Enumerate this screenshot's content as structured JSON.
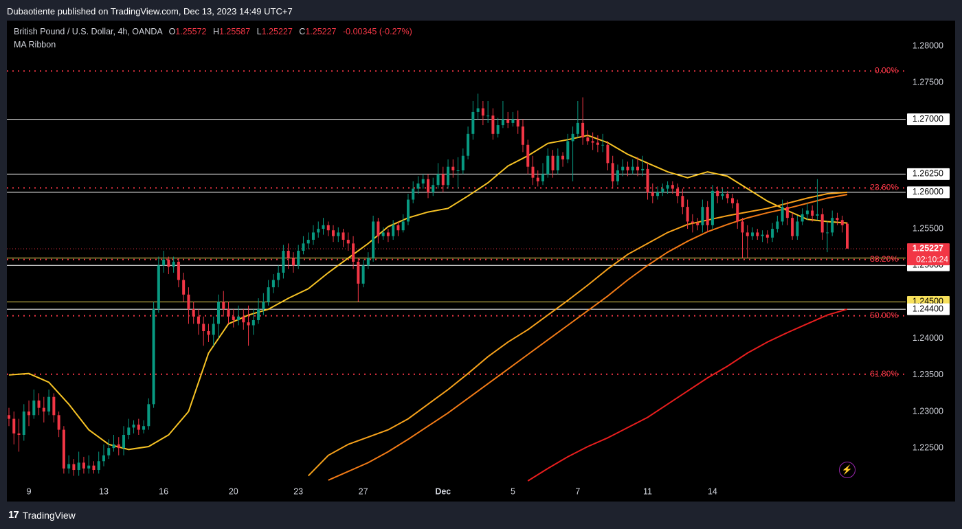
{
  "published": "Dubaotiente published on TradingView.com, Dec 13, 2023 14:49 UTC+7",
  "header": {
    "symbol": "British Pound / U.S. Dollar, 4h, OANDA",
    "o_label": "O",
    "o_value": "1.25572",
    "h_label": "H",
    "h_value": "1.25587",
    "l_label": "L",
    "l_value": "1.25227",
    "c_label": "C",
    "c_value": "1.25227",
    "change": "-0.00345 (-0.27%)"
  },
  "indicator": "MA Ribbon",
  "footer": {
    "brand": "TradingView"
  },
  "colors": {
    "up": "#089981",
    "down": "#f23645",
    "fib": "#f23645",
    "ma1": "#f7c325",
    "ma2": "#f7a21b",
    "ma3": "#f37b16",
    "ma4": "#e91e1e"
  },
  "chart_data": {
    "type": "candlestick",
    "ylim": [
      1.2205,
      1.2835
    ],
    "y_ticks": [
      "1.28000",
      "1.27500",
      "1.25500",
      "1.24000",
      "1.23500",
      "1.23000",
      "1.22500"
    ],
    "x_ticks": [
      "9",
      "13",
      "16",
      "20",
      "23",
      "27",
      "Dec",
      "5",
      "7",
      "11",
      "14"
    ],
    "x_tick_index": [
      4,
      19,
      31,
      45,
      58,
      71,
      87,
      101,
      114,
      128,
      141
    ],
    "fib_levels": [
      {
        "label": "0.00%",
        "price": 1.2766
      },
      {
        "label": "23.60%",
        "price": 1.2606
      },
      {
        "label": "38.20%",
        "price": 1.2508
      },
      {
        "label": "50.00%",
        "price": 1.2431
      },
      {
        "label": "61.80%",
        "price": 1.2351
      }
    ],
    "h_lines": [
      {
        "label": "1.27000",
        "price": 1.27,
        "color": "#ffffff"
      },
      {
        "label": "1.26250",
        "price": 1.2625,
        "color": "#ffffff"
      },
      {
        "label": "1.26000",
        "price": 1.26,
        "color": "#ffffff"
      },
      {
        "label": "1.25100",
        "price": 1.251,
        "color": "#f7e05b"
      },
      {
        "label": "1.25000",
        "price": 1.25,
        "color": "#ffffff"
      },
      {
        "label": "1.24500",
        "price": 1.245,
        "color": "#f7e05b"
      },
      {
        "label": "1.24400",
        "price": 1.244,
        "color": "#ffffff"
      }
    ],
    "last_price": {
      "label": "1.25227",
      "countdown": "02:10:24",
      "price": 1.25227
    },
    "candles": [
      [
        1.2295,
        1.229,
        1.2305,
        1.228
      ],
      [
        1.229,
        1.227,
        1.23,
        1.2255
      ],
      [
        1.227,
        1.2268,
        1.229,
        1.2245
      ],
      [
        1.2268,
        1.23,
        1.231,
        1.226
      ],
      [
        1.23,
        1.2295,
        1.2315,
        1.228
      ],
      [
        1.2295,
        1.2315,
        1.233,
        1.229
      ],
      [
        1.2315,
        1.2305,
        1.2325,
        1.2295
      ],
      [
        1.2305,
        1.23,
        1.232,
        1.2285
      ],
      [
        1.23,
        1.232,
        1.233,
        1.2295
      ],
      [
        1.232,
        1.2295,
        1.2325,
        1.2285
      ],
      [
        1.2295,
        1.2275,
        1.23,
        1.2265
      ],
      [
        1.2275,
        1.2222,
        1.228,
        1.2215
      ],
      [
        1.2222,
        1.2228,
        1.224,
        1.2215
      ],
      [
        1.2228,
        1.222,
        1.2235,
        1.2212
      ],
      [
        1.222,
        1.223,
        1.2245,
        1.2212
      ],
      [
        1.223,
        1.2222,
        1.2238,
        1.2215
      ],
      [
        1.2222,
        1.2226,
        1.224,
        1.2215
      ],
      [
        1.2226,
        1.222,
        1.2232,
        1.2215
      ],
      [
        1.222,
        1.2232,
        1.2245,
        1.2215
      ],
      [
        1.2232,
        1.224,
        1.2255,
        1.2225
      ],
      [
        1.224,
        1.225,
        1.2262,
        1.2235
      ],
      [
        1.225,
        1.2255,
        1.2268,
        1.2245
      ],
      [
        1.2255,
        1.225,
        1.2265,
        1.224
      ],
      [
        1.225,
        1.2268,
        1.228,
        1.224
      ],
      [
        1.2268,
        1.2278,
        1.229,
        1.2262
      ],
      [
        1.2278,
        1.2282,
        1.2288,
        1.227
      ],
      [
        1.2282,
        1.2275,
        1.229,
        1.2268
      ],
      [
        1.2275,
        1.228,
        1.2288,
        1.227
      ],
      [
        1.228,
        1.231,
        1.2318,
        1.2275
      ],
      [
        1.231,
        1.244,
        1.245,
        1.2305
      ],
      [
        1.244,
        1.25,
        1.2512,
        1.2435
      ],
      [
        1.25,
        1.2508,
        1.252,
        1.249
      ],
      [
        1.2508,
        1.2498,
        1.2512,
        1.2488
      ],
      [
        1.2498,
        1.2505,
        1.2512,
        1.249
      ],
      [
        1.2505,
        1.248,
        1.251,
        1.247
      ],
      [
        1.248,
        1.246,
        1.249,
        1.245
      ],
      [
        1.246,
        1.244,
        1.247,
        1.242
      ],
      [
        1.244,
        1.243,
        1.245,
        1.242
      ],
      [
        1.243,
        1.242,
        1.244,
        1.2405
      ],
      [
        1.242,
        1.241,
        1.243,
        1.239
      ],
      [
        1.241,
        1.2405,
        1.242,
        1.2395
      ],
      [
        1.2405,
        1.242,
        1.243,
        1.239
      ],
      [
        1.242,
        1.245,
        1.246,
        1.24
      ],
      [
        1.245,
        1.244,
        1.2465,
        1.243
      ],
      [
        1.244,
        1.243,
        1.245,
        1.242
      ],
      [
        1.243,
        1.2425,
        1.244,
        1.2415
      ],
      [
        1.2425,
        1.243,
        1.2445,
        1.2418
      ],
      [
        1.243,
        1.2422,
        1.244,
        1.2412
      ],
      [
        1.2422,
        1.2418,
        1.2445,
        1.239
      ],
      [
        1.2418,
        1.2425,
        1.244,
        1.2405
      ],
      [
        1.2425,
        1.244,
        1.2455,
        1.242
      ],
      [
        1.244,
        1.245,
        1.2462,
        1.2432
      ],
      [
        1.245,
        1.247,
        1.248,
        1.2445
      ],
      [
        1.247,
        1.248,
        1.2488,
        1.2462
      ],
      [
        1.248,
        1.249,
        1.25,
        1.247
      ],
      [
        1.249,
        1.252,
        1.2528,
        1.2482
      ],
      [
        1.252,
        1.251,
        1.253,
        1.2495
      ],
      [
        1.251,
        1.25,
        1.2518,
        1.249
      ],
      [
        1.25,
        1.252,
        1.2528,
        1.2495
      ],
      [
        1.252,
        1.253,
        1.254,
        1.2515
      ],
      [
        1.253,
        1.2535,
        1.2545,
        1.2522
      ],
      [
        1.2535,
        1.2545,
        1.2555,
        1.2528
      ],
      [
        1.2545,
        1.255,
        1.256,
        1.2538
      ],
      [
        1.255,
        1.2555,
        1.2565,
        1.2542
      ],
      [
        1.2555,
        1.2548,
        1.256,
        1.254
      ],
      [
        1.2548,
        1.254,
        1.2555,
        1.2532
      ],
      [
        1.254,
        1.2545,
        1.2552,
        1.2532
      ],
      [
        1.2545,
        1.2535,
        1.255,
        1.2525
      ],
      [
        1.2535,
        1.253,
        1.2545,
        1.252
      ],
      [
        1.253,
        1.2505,
        1.254,
        1.2495
      ],
      [
        1.2505,
        1.2475,
        1.251,
        1.245
      ],
      [
        1.2475,
        1.25,
        1.2508,
        1.247
      ],
      [
        1.25,
        1.251,
        1.2518,
        1.2495
      ],
      [
        1.251,
        1.256,
        1.2568,
        1.2505
      ],
      [
        1.256,
        1.254,
        1.2565,
        1.253
      ],
      [
        1.254,
        1.2545,
        1.2552,
        1.2535
      ],
      [
        1.2545,
        1.254,
        1.255,
        1.2532
      ],
      [
        1.254,
        1.2555,
        1.2562,
        1.2535
      ],
      [
        1.2555,
        1.2548,
        1.256,
        1.254
      ],
      [
        1.2548,
        1.256,
        1.257,
        1.2545
      ],
      [
        1.256,
        1.259,
        1.2598,
        1.2555
      ],
      [
        1.259,
        1.2605,
        1.2615,
        1.2585
      ],
      [
        1.2605,
        1.2612,
        1.2622,
        1.2598
      ],
      [
        1.2612,
        1.2618,
        1.2625,
        1.2605
      ],
      [
        1.2618,
        1.26,
        1.2625,
        1.2592
      ],
      [
        1.26,
        1.261,
        1.262,
        1.2595
      ],
      [
        1.261,
        1.2625,
        1.264,
        1.2605
      ],
      [
        1.2625,
        1.261,
        1.2635,
        1.26
      ],
      [
        1.261,
        1.2635,
        1.2645,
        1.2605
      ],
      [
        1.2635,
        1.263,
        1.2645,
        1.262
      ],
      [
        1.263,
        1.263,
        1.2648,
        1.2605
      ],
      [
        1.263,
        1.265,
        1.266,
        1.2625
      ],
      [
        1.265,
        1.268,
        1.269,
        1.2645
      ],
      [
        1.268,
        1.271,
        1.2725,
        1.2672
      ],
      [
        1.271,
        1.2715,
        1.2735,
        1.27
      ],
      [
        1.2715,
        1.2705,
        1.2725,
        1.2692
      ],
      [
        1.2705,
        1.2705,
        1.2725,
        1.2695
      ],
      [
        1.2705,
        1.268,
        1.2715,
        1.2672
      ],
      [
        1.268,
        1.2692,
        1.2702,
        1.2675
      ],
      [
        1.2692,
        1.27,
        1.2725,
        1.2688
      ],
      [
        1.27,
        1.2695,
        1.271,
        1.2688
      ],
      [
        1.2695,
        1.27,
        1.271,
        1.269
      ],
      [
        1.27,
        1.269,
        1.2712,
        1.268
      ],
      [
        1.269,
        1.2665,
        1.27,
        1.2655
      ],
      [
        1.2665,
        1.2635,
        1.2672,
        1.2625
      ],
      [
        1.2635,
        1.262,
        1.265,
        1.261
      ],
      [
        1.262,
        1.2615,
        1.263,
        1.2608
      ],
      [
        1.2615,
        1.2625,
        1.264,
        1.261
      ],
      [
        1.2625,
        1.265,
        1.266,
        1.262
      ],
      [
        1.265,
        1.263,
        1.2658,
        1.262
      ],
      [
        1.263,
        1.265,
        1.266,
        1.2625
      ],
      [
        1.265,
        1.2645,
        1.2655,
        1.2635
      ],
      [
        1.2645,
        1.267,
        1.268,
        1.264
      ],
      [
        1.267,
        1.268,
        1.269,
        1.2615
      ],
      [
        1.268,
        1.2695,
        1.2725,
        1.2675
      ],
      [
        1.2695,
        1.2675,
        1.273,
        1.2665
      ],
      [
        1.2675,
        1.267,
        1.2685,
        1.2665
      ],
      [
        1.267,
        1.2668,
        1.2682,
        1.2658
      ],
      [
        1.2668,
        1.2665,
        1.2678,
        1.2655
      ],
      [
        1.2665,
        1.2665,
        1.268,
        1.2655
      ],
      [
        1.2665,
        1.264,
        1.267,
        1.263
      ],
      [
        1.264,
        1.2615,
        1.265,
        1.2605
      ],
      [
        1.2615,
        1.263,
        1.2638,
        1.261
      ],
      [
        1.263,
        1.2635,
        1.2645,
        1.2622
      ],
      [
        1.2635,
        1.263,
        1.2642,
        1.2622
      ],
      [
        1.263,
        1.2635,
        1.2645,
        1.2625
      ],
      [
        1.2635,
        1.263,
        1.2648,
        1.2622
      ],
      [
        1.263,
        1.2632,
        1.265,
        1.2622
      ],
      [
        1.2632,
        1.26,
        1.264,
        1.259
      ],
      [
        1.26,
        1.2595,
        1.2612,
        1.2585
      ],
      [
        1.2595,
        1.26,
        1.2608,
        1.259
      ],
      [
        1.26,
        1.2605,
        1.2612,
        1.2595
      ],
      [
        1.2605,
        1.261,
        1.2615,
        1.2598
      ],
      [
        1.261,
        1.2605,
        1.2615,
        1.2598
      ],
      [
        1.2605,
        1.2595,
        1.2612,
        1.2585
      ],
      [
        1.2595,
        1.258,
        1.2605,
        1.257
      ],
      [
        1.258,
        1.256,
        1.259,
        1.255
      ],
      [
        1.256,
        1.2558,
        1.257,
        1.2545
      ],
      [
        1.2558,
        1.2555,
        1.2565,
        1.2548
      ],
      [
        1.2555,
        1.258,
        1.259,
        1.2545
      ],
      [
        1.258,
        1.2555,
        1.2588,
        1.2545
      ],
      [
        1.2555,
        1.2602,
        1.261,
        1.255
      ],
      [
        1.2602,
        1.2595,
        1.2608,
        1.2585
      ],
      [
        1.2595,
        1.2598,
        1.2605,
        1.259
      ],
      [
        1.2598,
        1.2592,
        1.2602,
        1.2585
      ],
      [
        1.2592,
        1.2585,
        1.2598,
        1.2578
      ],
      [
        1.2585,
        1.256,
        1.259,
        1.255
      ],
      [
        1.256,
        1.2545,
        1.2565,
        1.251
      ],
      [
        1.2545,
        1.254,
        1.2555,
        1.251
      ],
      [
        1.254,
        1.2545,
        1.2552,
        1.2535
      ],
      [
        1.2545,
        1.254,
        1.255,
        1.2535
      ],
      [
        1.254,
        1.2542,
        1.2548,
        1.2532
      ],
      [
        1.2542,
        1.2538,
        1.2548,
        1.253
      ],
      [
        1.2538,
        1.255,
        1.2558,
        1.2532
      ],
      [
        1.255,
        1.256,
        1.2568,
        1.2545
      ],
      [
        1.256,
        1.258,
        1.259,
        1.2555
      ],
      [
        1.258,
        1.2565,
        1.2588,
        1.2555
      ],
      [
        1.2565,
        1.254,
        1.2572,
        1.2535
      ],
      [
        1.254,
        1.256,
        1.2568,
        1.2535
      ],
      [
        1.256,
        1.257,
        1.2578,
        1.2555
      ],
      [
        1.257,
        1.2575,
        1.2585,
        1.2562
      ],
      [
        1.2575,
        1.2568,
        1.2582,
        1.256
      ],
      [
        1.2568,
        1.257,
        1.2618,
        1.2562
      ],
      [
        1.257,
        1.2545,
        1.2578,
        1.2535
      ],
      [
        1.2545,
        1.2545,
        1.256,
        1.2518
      ],
      [
        1.2545,
        1.2565,
        1.2575,
        1.254
      ],
      [
        1.2565,
        1.2562,
        1.2572,
        1.2555
      ],
      [
        1.2562,
        1.2555,
        1.2568,
        1.2545
      ],
      [
        1.2557,
        1.2523,
        1.2559,
        1.2523
      ]
    ],
    "ma_ribbon": [
      {
        "name": "MA1",
        "color": "#f7c325",
        "values": [
          1.235,
          1.2352,
          1.234,
          1.231,
          1.2275,
          1.2255,
          1.2248,
          1.2252,
          1.2268,
          1.23,
          1.238,
          1.242,
          1.2432,
          1.244,
          1.2455,
          1.2468,
          1.249,
          1.251,
          1.253,
          1.2553,
          1.2565,
          1.2573,
          1.2578,
          1.2595,
          1.2613,
          1.2636,
          1.265,
          1.2667,
          1.2672,
          1.2678,
          1.2668,
          1.2652,
          1.264,
          1.2628,
          1.262,
          1.2628,
          1.2622,
          1.2605,
          1.2588,
          1.2575,
          1.2563,
          1.256,
          1.2558
        ]
      },
      {
        "name": "MA2",
        "color": "#f7a21b",
        "values": [
          1.2212,
          1.224,
          1.2255,
          1.2265,
          1.2275,
          1.229,
          1.231,
          1.233,
          1.2352,
          1.2375,
          1.2395,
          1.2412,
          1.2432,
          1.2452,
          1.2473,
          1.2495,
          1.2515,
          1.253,
          1.2545,
          1.2556,
          1.2562,
          1.2568,
          1.2573,
          1.2578,
          1.2585,
          1.2592,
          1.2598,
          1.26
        ]
      },
      {
        "name": "MA3",
        "color": "#f37b16",
        "values": [
          1.2206,
          1.2218,
          1.223,
          1.2245,
          1.2262,
          1.228,
          1.2298,
          1.2318,
          1.2338,
          1.2358,
          1.2378,
          1.2398,
          1.2418,
          1.2438,
          1.2458,
          1.248,
          1.25,
          1.2518,
          1.2533,
          1.2546,
          1.2556,
          1.2565,
          1.2572,
          1.2578,
          1.2585,
          1.2592,
          1.2597
        ]
      },
      {
        "name": "MA4",
        "color": "#e91e1e",
        "values": [
          1.2205,
          1.2222,
          1.2238,
          1.2252,
          1.2264,
          1.2278,
          1.2292,
          1.231,
          1.2328,
          1.2346,
          1.2362,
          1.238,
          1.2395,
          1.2408,
          1.242,
          1.2432,
          1.244
        ]
      }
    ]
  }
}
